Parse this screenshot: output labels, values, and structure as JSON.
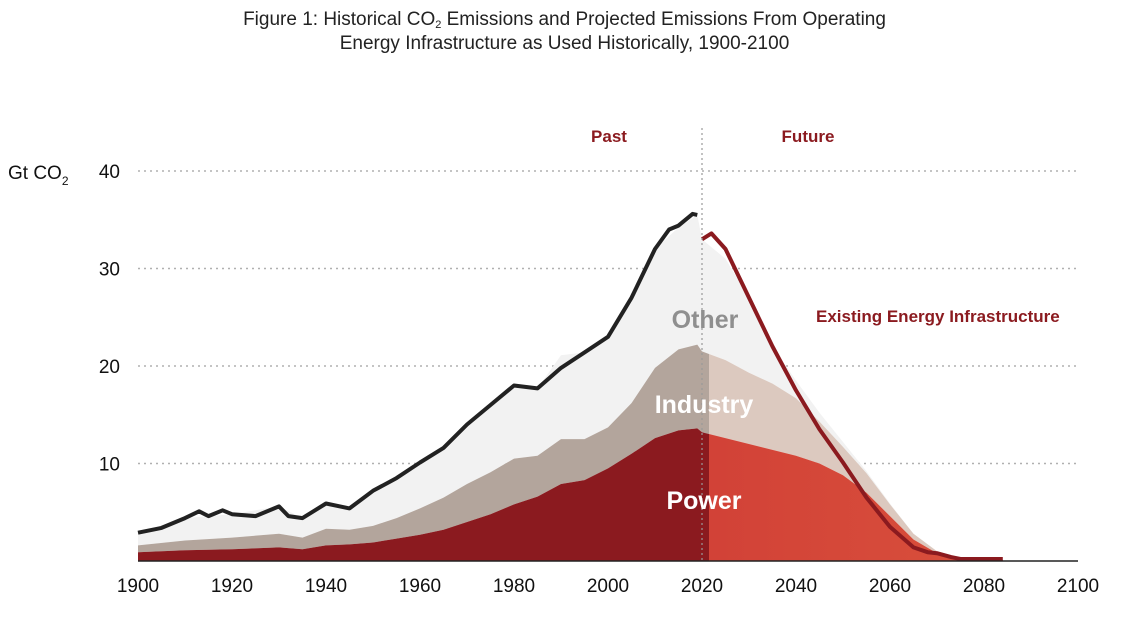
{
  "title": {
    "line1_prefix": "Figure 1: Historical CO",
    "line1_sub": "2",
    "line1_suffix": " Emissions and Projected Emissions From Operating",
    "line2": "Energy Infrastructure as Used Historically, 1900-2100"
  },
  "chart_data": {
    "type": "area",
    "ylabel_main": "Gt CO",
    "ylabel_sub": "2",
    "xlim": [
      1900,
      2100
    ],
    "ylim": [
      0,
      40
    ],
    "x_ticks": [
      1900,
      1920,
      1940,
      1960,
      1980,
      2000,
      2020,
      2040,
      2060,
      2080,
      2100
    ],
    "y_ticks": [
      10,
      20,
      30,
      40
    ],
    "grid": true,
    "divider_year": 2020,
    "period_labels": {
      "past": "Past",
      "future": "Future"
    },
    "annotation": "Existing Energy Infrastructure",
    "colors": {
      "power": "#8b1a1f",
      "industry": "#b3a59c",
      "other": "#f2f2f2",
      "total_line": "#222222",
      "future_power_start": "#c4262d",
      "future_power_end": "#d9503c",
      "future_industry": "#dcc9bf",
      "future_line": "#8b1a1f"
    },
    "series": [
      {
        "name": "Power",
        "x": [
          1900,
          1910,
          1920,
          1930,
          1935,
          1940,
          1945,
          1950,
          1955,
          1960,
          1965,
          1970,
          1975,
          1980,
          1985,
          1990,
          1995,
          2000,
          2005,
          2010,
          2015,
          2019,
          2020,
          2025,
          2030,
          2035,
          2040,
          2045,
          2050,
          2055,
          2060,
          2065,
          2070,
          2075,
          2080,
          2084
        ],
        "values": [
          0.9,
          1.1,
          1.2,
          1.4,
          1.2,
          1.6,
          1.7,
          1.9,
          2.3,
          2.7,
          3.2,
          4.0,
          4.8,
          5.8,
          6.6,
          7.9,
          8.3,
          9.5,
          11.0,
          12.6,
          13.4,
          13.6,
          13.2,
          12.6,
          12.0,
          11.4,
          10.8,
          10.0,
          8.8,
          7.0,
          4.6,
          2.2,
          0.8,
          0.3,
          0.1,
          0.1
        ]
      },
      {
        "name": "Industry",
        "x": [
          1900,
          1910,
          1920,
          1930,
          1935,
          1940,
          1945,
          1950,
          1955,
          1960,
          1965,
          1970,
          1975,
          1980,
          1985,
          1990,
          1995,
          2000,
          2005,
          2010,
          2015,
          2019,
          2020,
          2025,
          2030,
          2035,
          2040,
          2045,
          2050,
          2055,
          2060,
          2065,
          2070,
          2075,
          2080,
          2084
        ],
        "values": [
          0.7,
          1.0,
          1.2,
          1.4,
          1.2,
          1.7,
          1.5,
          1.7,
          2.1,
          2.7,
          3.3,
          3.9,
          4.3,
          4.7,
          4.2,
          4.6,
          4.2,
          4.2,
          5.2,
          7.2,
          8.3,
          8.6,
          8.3,
          8.0,
          7.3,
          6.8,
          5.9,
          4.3,
          2.9,
          2.0,
          1.2,
          0.6,
          0.2,
          0.0,
          0.0,
          0.0
        ]
      },
      {
        "name": "Other",
        "x": [
          1900,
          1910,
          1920,
          1930,
          1935,
          1940,
          1945,
          1950,
          1955,
          1960,
          1965,
          1970,
          1975,
          1980,
          1985,
          1990,
          1995,
          2000,
          2005,
          2010,
          2015,
          2019,
          2020,
          2025,
          2030,
          2035,
          2040,
          2045,
          2050,
          2055,
          2060,
          2065,
          2070,
          2075,
          2080,
          2084
        ],
        "values": [
          1.3,
          2.3,
          2.4,
          2.8,
          2.0,
          2.6,
          2.2,
          3.6,
          4.1,
          4.7,
          5.1,
          6.1,
          6.9,
          7.5,
          6.9,
          8.6,
          8.9,
          9.3,
          10.3,
          12.2,
          12.5,
          13.3,
          11.5,
          10.4,
          7.7,
          3.8,
          1.8,
          0.9,
          0.5,
          0.2,
          0.1,
          0.0,
          0.0,
          0.0,
          0.0,
          0.0
        ]
      },
      {
        "name": "Existing Energy Infrastructure",
        "x": [
          1900,
          1905,
          1910,
          1913,
          1915,
          1918,
          1920,
          1925,
          1930,
          1932,
          1935,
          1940,
          1945,
          1950,
          1955,
          1960,
          1965,
          1970,
          1975,
          1980,
          1985,
          1990,
          1995,
          2000,
          2005,
          2010,
          2013,
          2015,
          2018,
          2019,
          2020,
          2022,
          2025,
          2030,
          2035,
          2040,
          2045,
          2050,
          2055,
          2060,
          2065,
          2068,
          2070,
          2073,
          2075,
          2080,
          2084
        ],
        "values": [
          2.9,
          3.4,
          4.4,
          5.1,
          4.6,
          5.2,
          4.8,
          4.6,
          5.6,
          4.6,
          4.4,
          5.9,
          5.4,
          7.2,
          8.5,
          10.1,
          11.6,
          14.0,
          16.0,
          18.0,
          17.7,
          19.8,
          21.4,
          23.0,
          27.0,
          32.0,
          34.0,
          34.4,
          35.6,
          35.5,
          33.0,
          33.6,
          32.0,
          27.0,
          22.0,
          17.5,
          13.5,
          10.1,
          6.5,
          3.5,
          1.4,
          0.9,
          0.8,
          0.4,
          0.2,
          0.2,
          0.2
        ]
      }
    ]
  }
}
